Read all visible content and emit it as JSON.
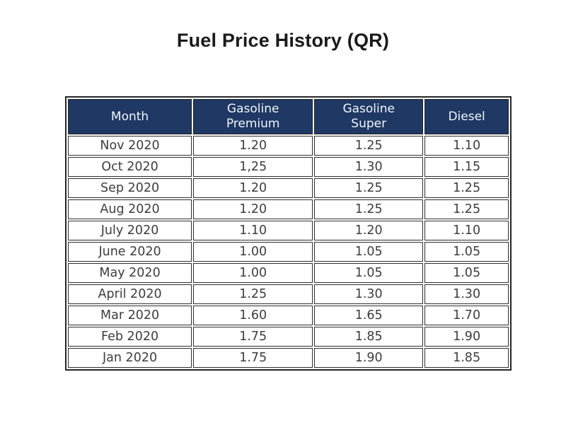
{
  "page": {
    "title": "Fuel Price History (QR)"
  },
  "table": {
    "columns": [
      "Month",
      "Gasoline Premium",
      "Gasoline Super",
      "Diesel"
    ],
    "header_bg": "#1f3864",
    "header_text_color": "#f2f5fb",
    "rows": [
      {
        "month": "Nov 2020",
        "premium": "1.20",
        "super": "1.25",
        "diesel": "1.10"
      },
      {
        "month": "Oct 2020",
        "premium": "1,25",
        "super": "1.30",
        "diesel": "1.15"
      },
      {
        "month": "Sep 2020",
        "premium": "1.20",
        "super": "1.25",
        "diesel": "1.25"
      },
      {
        "month": "Aug 2020",
        "premium": "1.20",
        "super": "1.25",
        "diesel": "1.25"
      },
      {
        "month": "July 2020",
        "premium": "1.10",
        "super": "1.20",
        "diesel": "1.10"
      },
      {
        "month": "June 2020",
        "premium": "1.00",
        "super": "1.05",
        "diesel": "1.05"
      },
      {
        "month": "May 2020",
        "premium": "1.00",
        "super": "1.05",
        "diesel": "1.05"
      },
      {
        "month": "April 2020",
        "premium": "1.25",
        "super": "1.30",
        "diesel": "1.30"
      },
      {
        "month": "Mar 2020",
        "premium": "1.60",
        "super": "1.65",
        "diesel": "1.70"
      },
      {
        "month": "Feb 2020",
        "premium": "1.75",
        "super": "1.85",
        "diesel": "1.90"
      },
      {
        "month": "Jan 2020",
        "premium": "1.75",
        "super": "1.90",
        "diesel": "1.85"
      }
    ]
  }
}
